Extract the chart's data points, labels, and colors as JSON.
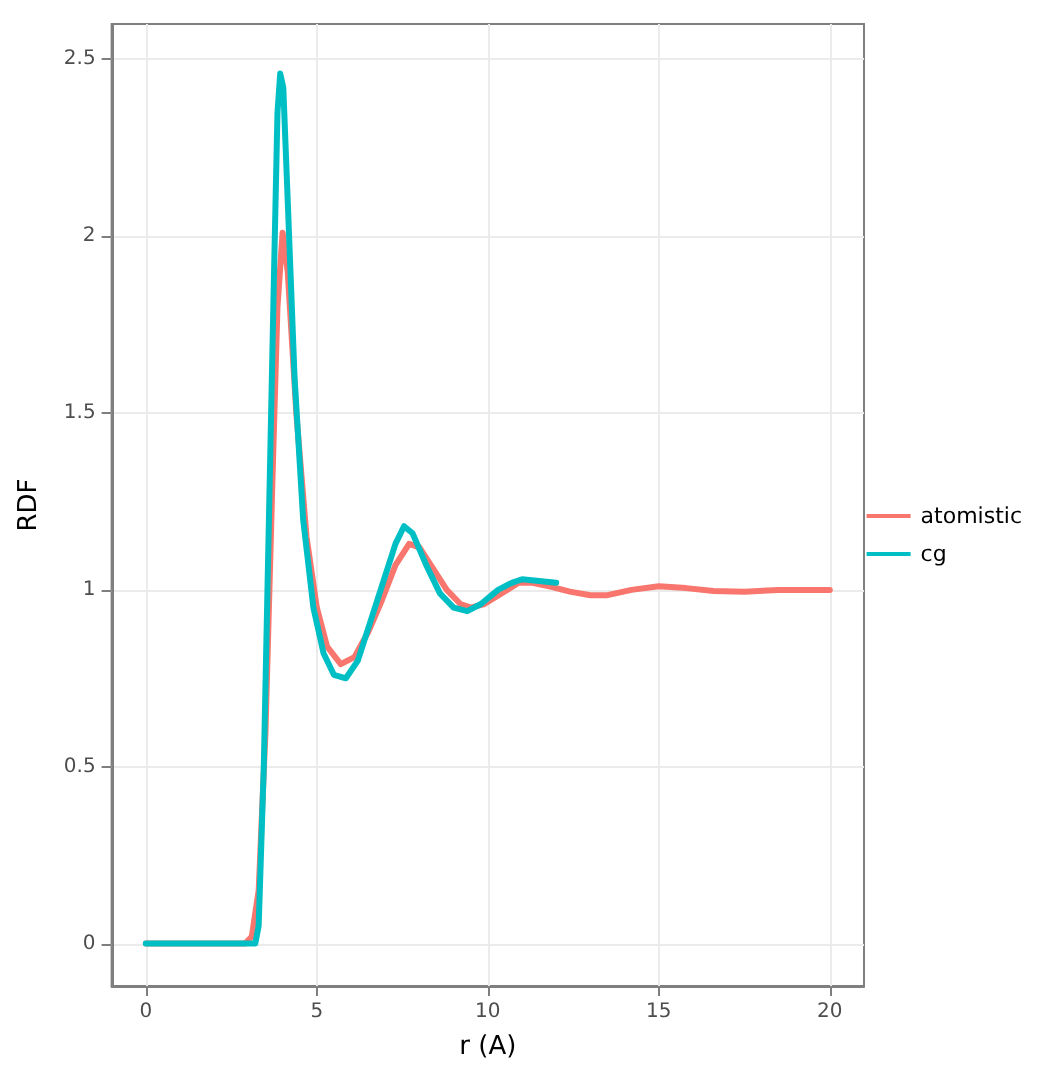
{
  "chart_data": {
    "type": "line",
    "xlabel": "r (A)",
    "ylabel": "RDF",
    "xlim": [
      -1,
      21
    ],
    "xticks": [
      0,
      5,
      10,
      15,
      20
    ],
    "ylim": [
      -0.12,
      2.6
    ],
    "yticks": [
      0,
      0.5,
      1,
      1.5,
      2,
      2.5
    ],
    "grid": true,
    "legend": "right",
    "marker": "none",
    "line_style": "solid",
    "series": [
      {
        "name": "atomistic",
        "color": "#f8766d",
        "x": [
          0,
          2.9,
          3.1,
          3.3,
          3.5,
          3.7,
          3.85,
          4.0,
          4.15,
          4.4,
          4.7,
          5.0,
          5.3,
          5.7,
          6.1,
          6.5,
          6.9,
          7.3,
          7.7,
          8.0,
          8.4,
          8.8,
          9.2,
          9.5,
          9.9,
          10.4,
          10.9,
          11.3,
          11.8,
          12.4,
          13.0,
          13.5,
          14.2,
          15.0,
          15.8,
          16.6,
          17.5,
          18.5,
          20
        ],
        "values": [
          0,
          0,
          0.02,
          0.15,
          0.6,
          1.3,
          1.8,
          2.01,
          1.9,
          1.5,
          1.15,
          0.95,
          0.84,
          0.79,
          0.81,
          0.88,
          0.97,
          1.07,
          1.13,
          1.12,
          1.06,
          1.0,
          0.96,
          0.95,
          0.96,
          0.99,
          1.02,
          1.02,
          1.01,
          0.995,
          0.985,
          0.985,
          1.0,
          1.01,
          1.005,
          0.997,
          0.995,
          1.0,
          1.0
        ]
      },
      {
        "name": "cg",
        "color": "#00bfc4",
        "x": [
          0,
          3.2,
          3.3,
          3.45,
          3.6,
          3.75,
          3.85,
          3.93,
          4.02,
          4.15,
          4.35,
          4.6,
          4.9,
          5.2,
          5.5,
          5.85,
          6.2,
          6.6,
          7.0,
          7.3,
          7.55,
          7.8,
          8.2,
          8.6,
          9.0,
          9.4,
          9.8,
          10.3,
          10.7,
          11.0,
          11.5,
          12.0
        ],
        "values": [
          0,
          0,
          0.05,
          0.5,
          1.2,
          1.9,
          2.35,
          2.46,
          2.42,
          2.1,
          1.6,
          1.2,
          0.95,
          0.82,
          0.76,
          0.75,
          0.8,
          0.92,
          1.04,
          1.13,
          1.18,
          1.16,
          1.07,
          0.99,
          0.95,
          0.94,
          0.96,
          1.0,
          1.02,
          1.03,
          1.025,
          1.02
        ]
      }
    ]
  }
}
